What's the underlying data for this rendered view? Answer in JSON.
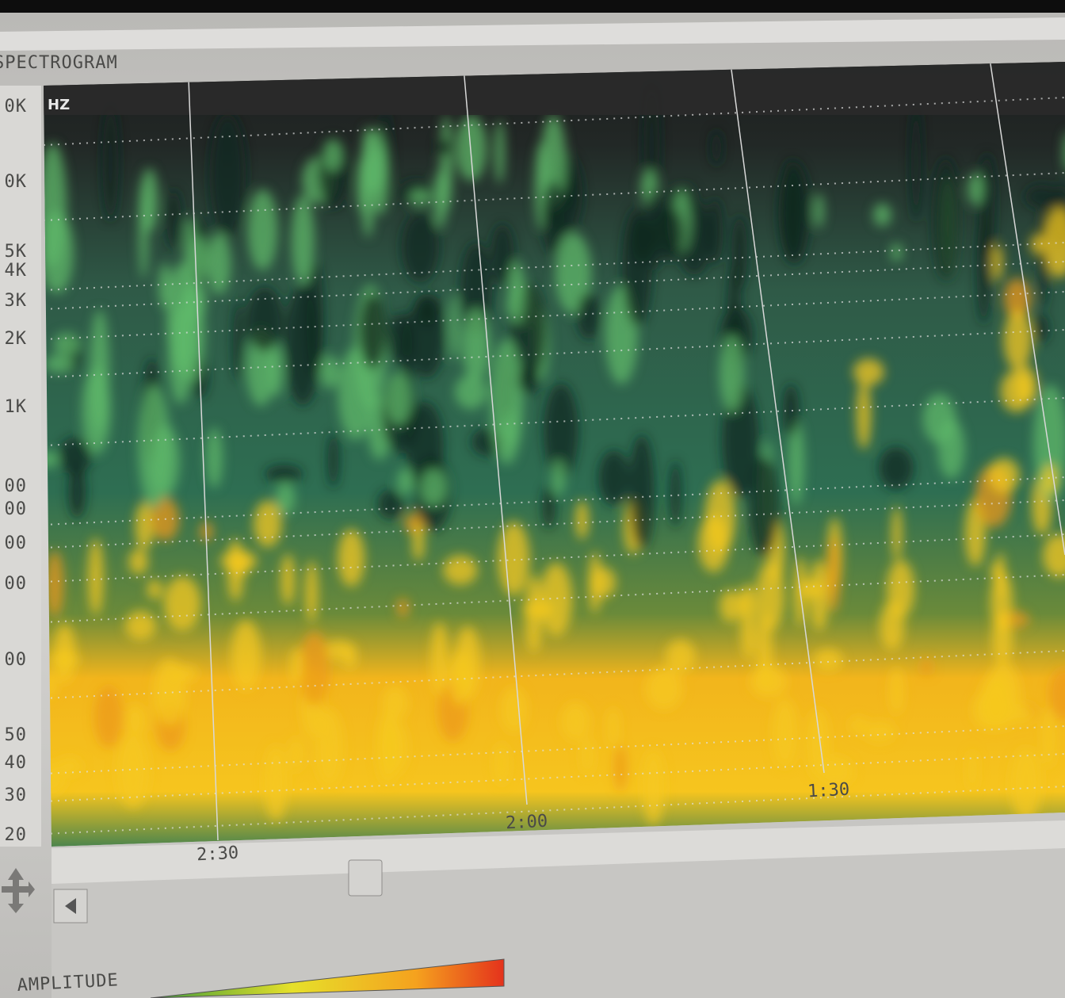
{
  "panel": {
    "title": "SPECTROGRAM",
    "unit": "HZ",
    "frequency_labels": [
      "0K",
      "0K",
      "5K",
      "4K",
      "3K",
      "2K",
      "1K",
      "00",
      "00",
      "00",
      "00",
      "00",
      "50",
      "40",
      "30",
      "20"
    ],
    "time_labels": [
      "2:30",
      "2:00",
      "1:30"
    ]
  },
  "amplitude": {
    "label": "AMPLITUDE"
  }
}
